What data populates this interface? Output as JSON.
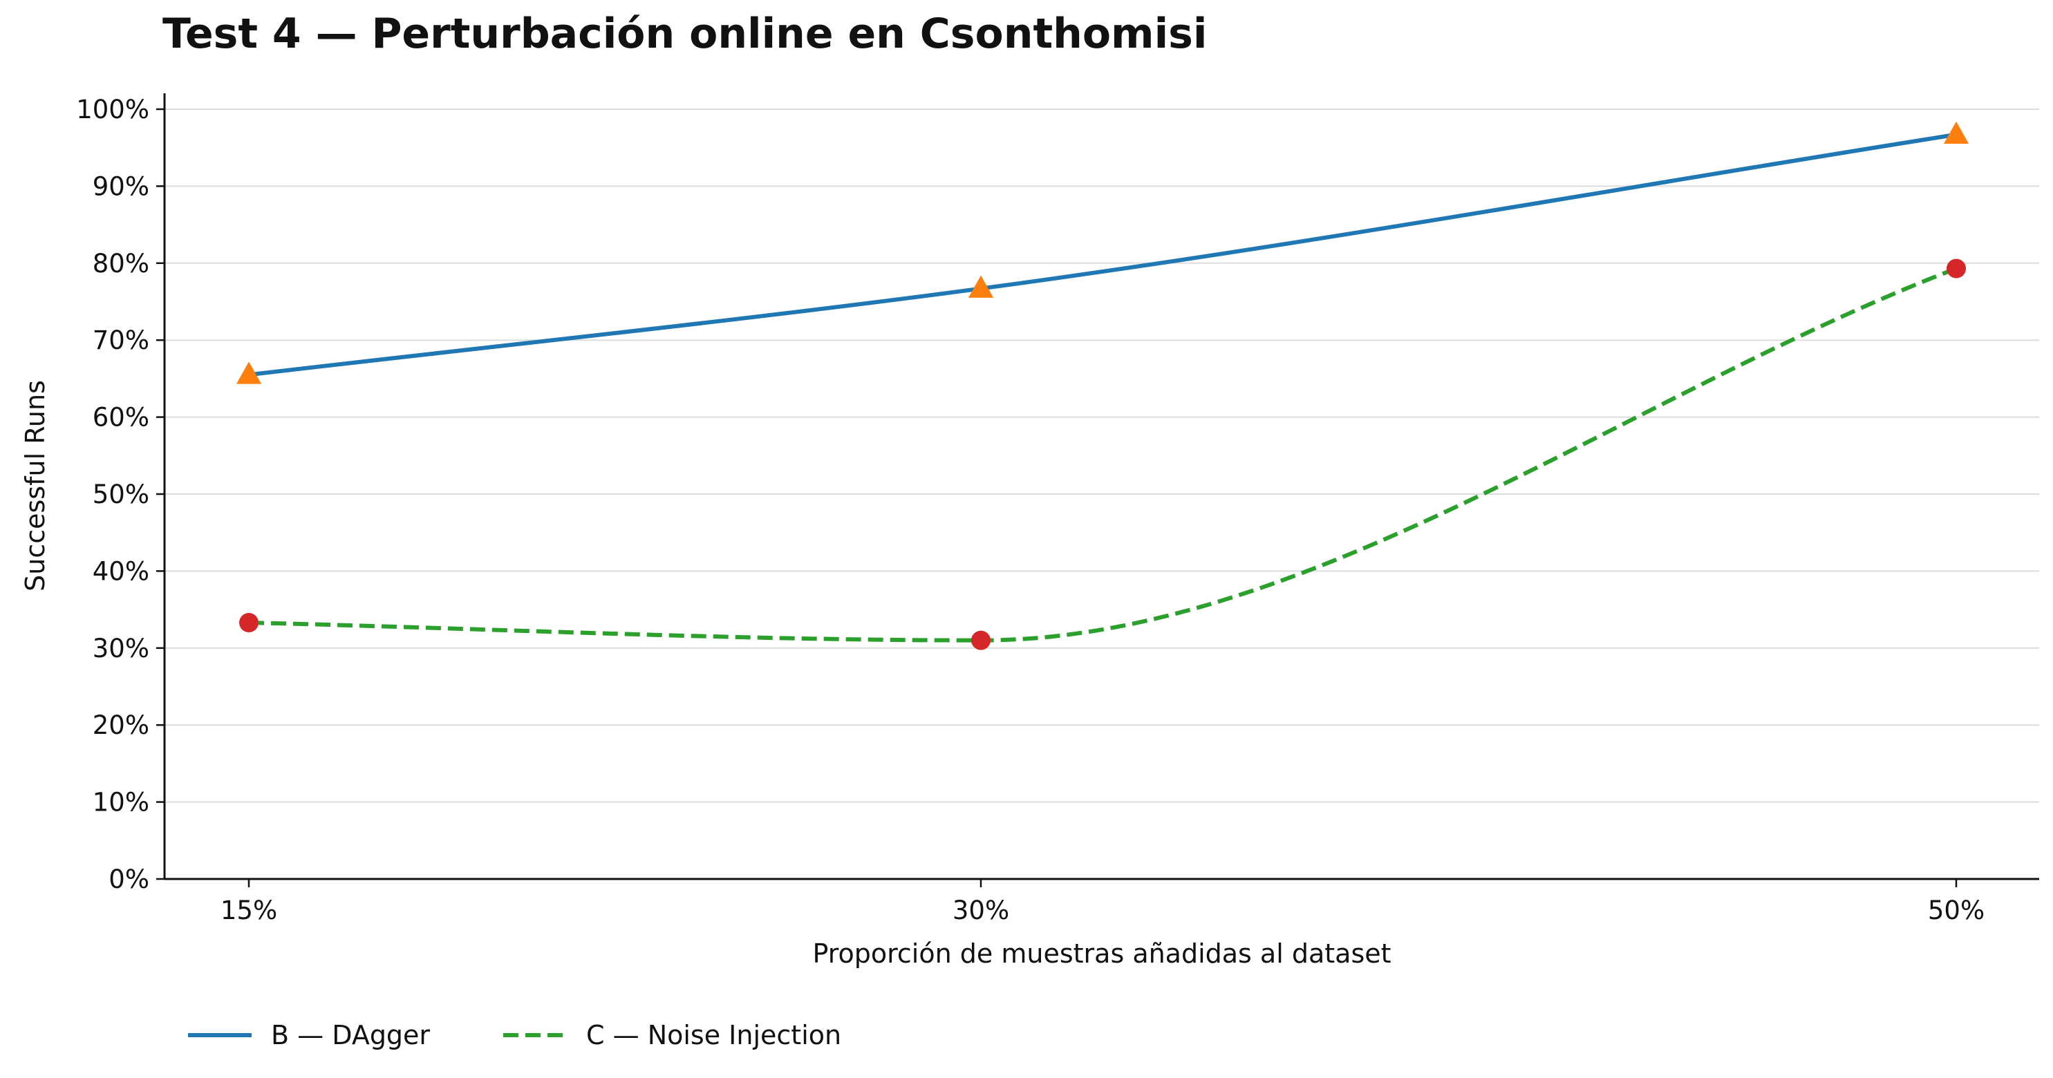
{
  "chart_data": {
    "type": "line",
    "title": "Test 4 — Perturbación online en Csonthomisi",
    "xlabel": "Proporción de muestras añadidas al dataset",
    "ylabel": "Successful Runs",
    "categories": [
      "15%",
      "30%",
      "50%"
    ],
    "x": [
      15,
      30,
      50
    ],
    "ylim": [
      0,
      100
    ],
    "yticks": [
      "0%",
      "10%",
      "20%",
      "30%",
      "40%",
      "50%",
      "60%",
      "70%",
      "80%",
      "90%",
      "100%"
    ],
    "grid": "horizontal",
    "legend_position": "bottom-left",
    "series": [
      {
        "name": "B — DAgger",
        "values": [
          65.5,
          76.7,
          96.7
        ],
        "line_color": "#1f77b4",
        "marker_color": "#ff7f0e",
        "marker": "triangle",
        "dash": "solid"
      },
      {
        "name": "C — Noise Injection",
        "values": [
          33.3,
          31.0,
          79.3
        ],
        "line_color": "#2ca02c",
        "marker_color": "#d62728",
        "marker": "circle",
        "dash": "dashed"
      }
    ]
  }
}
